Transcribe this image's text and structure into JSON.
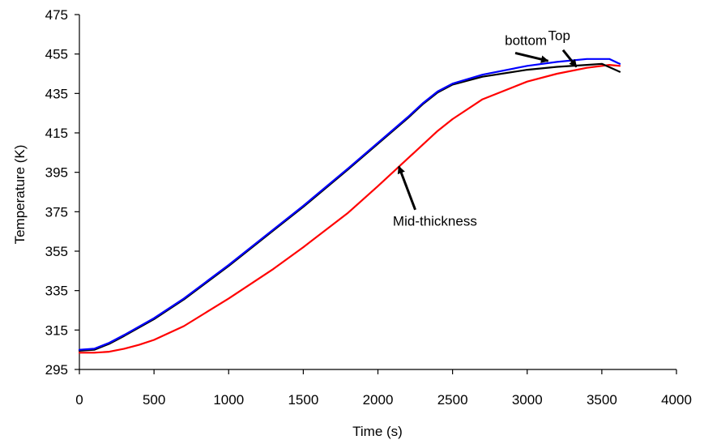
{
  "chart_data": {
    "type": "line",
    "title": "",
    "xlabel": "Time (s)",
    "ylabel": "Temperature (K)",
    "xlim": [
      0,
      4000
    ],
    "ylim": [
      295,
      475
    ],
    "x_ticks": [
      0,
      500,
      1000,
      1500,
      2000,
      2500,
      3000,
      3500,
      4000
    ],
    "y_ticks": [
      295,
      315,
      335,
      355,
      375,
      395,
      415,
      435,
      455,
      475
    ],
    "grid": false,
    "legend": "none",
    "series": [
      {
        "color": "#0000ff",
        "x": [
          0,
          100,
          200,
          300,
          500,
          700,
          1000,
          1300,
          1500,
          1800,
          2000,
          2200,
          2300,
          2400,
          2500,
          2700,
          3000,
          3200,
          3400,
          3550,
          3620
        ],
        "y": [
          305,
          305.5,
          308.5,
          312.5,
          321,
          331,
          348,
          366,
          378,
          397,
          410,
          423,
          430,
          436,
          440,
          444.5,
          449,
          451,
          452.5,
          452.5,
          450
        ]
      },
      {
        "color": "#000000",
        "x": [
          0,
          100,
          200,
          300,
          500,
          700,
          1000,
          1300,
          1500,
          1800,
          2000,
          2200,
          2300,
          2400,
          2500,
          2700,
          3000,
          3200,
          3400,
          3500,
          3620
        ],
        "y": [
          304.5,
          305,
          308,
          312,
          320.5,
          330.5,
          347.5,
          365.5,
          377.5,
          396.5,
          409.5,
          422.5,
          429.5,
          435.5,
          439.5,
          443.5,
          447,
          448.5,
          449.5,
          450,
          446
        ]
      },
      {
        "color": "#ff0000",
        "x": [
          0,
          100,
          200,
          300,
          400,
          500,
          700,
          1000,
          1300,
          1500,
          1800,
          2000,
          2200,
          2400,
          2500,
          2700,
          3000,
          3200,
          3400,
          3550,
          3620
        ],
        "y": [
          303.5,
          303.5,
          304,
          305.5,
          307.5,
          310,
          317,
          331,
          346,
          357,
          374.5,
          388,
          402,
          416,
          422,
          432,
          441,
          445,
          448,
          449.5,
          449
        ]
      }
    ],
    "annotations": [
      {
        "text": "bottom",
        "label_at": [
          2850,
          459.5
        ],
        "tail": [
          2920,
          455.5
        ],
        "head": [
          3140,
          451.5
        ]
      },
      {
        "text": "Top",
        "label_at": [
          3140,
          462
        ],
        "tail": [
          3240,
          457
        ],
        "head": [
          3330,
          448.5
        ]
      },
      {
        "text": "Mid-thickness",
        "label_at": [
          2100,
          368
        ],
        "tail": [
          2250,
          376
        ],
        "head": [
          2140,
          398
        ]
      }
    ]
  }
}
